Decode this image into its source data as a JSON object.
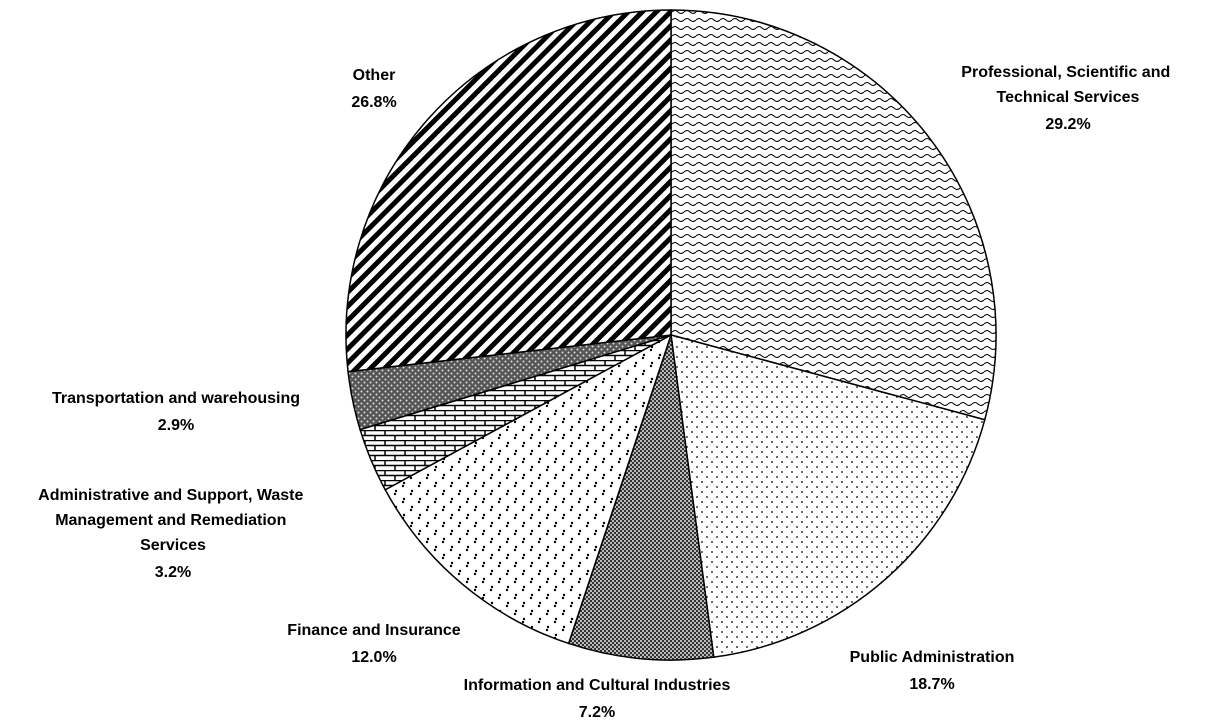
{
  "chart_data": {
    "type": "pie",
    "categories": [
      "Professional, Scientific and Technical Services",
      "Public Administration",
      "Information and Cultural Industries",
      "Finance and Insurance",
      "Administrative and Support, Waste Management and Remediation Services",
      "Transportation and warehousing",
      "Other"
    ],
    "values": [
      29.2,
      18.7,
      7.2,
      12.0,
      3.2,
      2.9,
      26.8
    ],
    "value_labels": [
      "29.2%",
      "18.7%",
      "7.2%",
      "12.0%",
      "3.2%",
      "2.9%",
      "26.8%"
    ]
  }
}
